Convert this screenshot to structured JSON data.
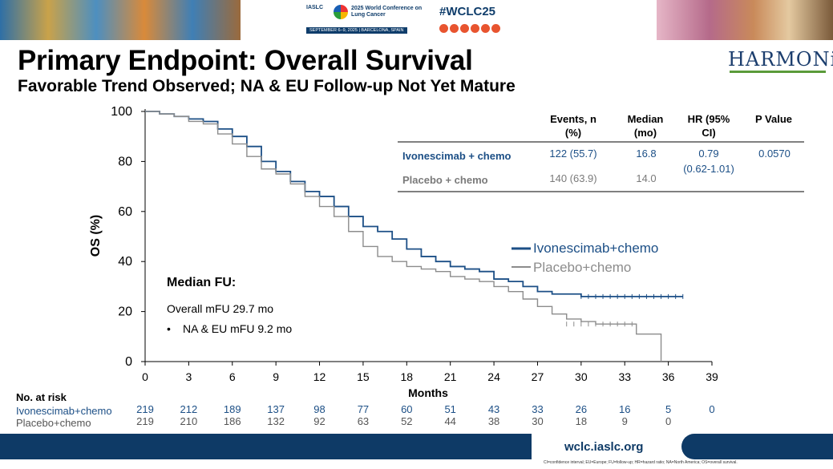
{
  "header": {
    "org": "IASLC",
    "conference": "2025 World Conference on Lung Cancer",
    "dates_location": "SEPTEMBER 6–9, 2025 | BARCELONA, SPAIN",
    "hashtag": "#WCLC25"
  },
  "title": "Primary Endpoint: Overall Survival",
  "subtitle": "Favorable Trend Observed; NA & EU Follow-up Not Yet Mature",
  "logo_text": "HARMONi",
  "colors": {
    "ivo": "#1c4f86",
    "placebo": "#8c8c8c",
    "footer": "#0e3a66"
  },
  "chart_data": {
    "type": "line",
    "title": "",
    "xlabel": "Months",
    "ylabel": "OS (%)",
    "xlim": [
      0,
      39
    ],
    "ylim": [
      0,
      100
    ],
    "xticks": [
      0,
      3,
      6,
      9,
      12,
      15,
      18,
      21,
      24,
      27,
      30,
      33,
      36,
      39
    ],
    "yticks": [
      0,
      20,
      40,
      60,
      80,
      100
    ],
    "series": [
      {
        "name": "Ivonescimab+chemo",
        "color": "#1c4f86",
        "x": [
          0,
          1,
          2,
          3,
          4,
          5,
          6,
          7,
          8,
          9,
          10,
          11,
          12,
          13,
          14,
          15,
          16,
          17,
          18,
          19,
          20,
          21,
          22,
          23,
          24,
          25,
          26,
          27,
          28,
          29,
          30,
          31,
          32,
          33,
          34,
          35,
          36,
          37
        ],
        "y": [
          100,
          99,
          98,
          97,
          96,
          93,
          90,
          86,
          80,
          76,
          72,
          68,
          66,
          62,
          58,
          54,
          52,
          49,
          45,
          42,
          40,
          38,
          37,
          36,
          33,
          32,
          30,
          28,
          27,
          27,
          26,
          26,
          26,
          26,
          26,
          26,
          26,
          26
        ]
      },
      {
        "name": "Placebo+chemo",
        "color": "#8c8c8c",
        "x": [
          0,
          1,
          2,
          3,
          4,
          5,
          6,
          7,
          8,
          9,
          10,
          11,
          12,
          13,
          14,
          15,
          16,
          17,
          18,
          19,
          20,
          21,
          22,
          23,
          24,
          25,
          26,
          27,
          28,
          29,
          30,
          31,
          32,
          33,
          33.8,
          35.5,
          35.5
        ],
        "y": [
          100,
          99,
          98,
          96,
          95,
          91,
          87,
          82,
          77,
          75,
          71,
          66,
          62,
          58,
          52,
          46,
          42,
          40,
          38,
          37,
          36,
          34,
          33,
          32,
          30,
          28,
          25,
          22,
          19,
          17,
          16,
          15,
          15,
          15,
          11,
          11,
          0
        ]
      }
    ],
    "legend_position": "center-right"
  },
  "table": {
    "headers": [
      "Events, n (%)",
      "Median (mo)",
      "HR (95% CI)",
      "P Value"
    ],
    "rows": [
      {
        "arm": "Ivonescimab + chemo",
        "events": "122 (55.7)",
        "median": "16.8",
        "hr": "0.79",
        "ci": "(0.62-1.01)",
        "p": "0.0570"
      },
      {
        "arm": "Placebo + chemo",
        "events": "140 (63.9)",
        "median": "14.0"
      }
    ]
  },
  "followup": {
    "title": "Median FU:",
    "overall": "Overall mFU 29.7 mo",
    "na_eu": "NA & EU mFU 9.2 mo"
  },
  "risk_table": {
    "label": "No. at risk",
    "arms": [
      {
        "name": "Ivonescimab+chemo",
        "counts": [
          "219",
          "212",
          "189",
          "137",
          "98",
          "77",
          "60",
          "51",
          "43",
          "33",
          "26",
          "16",
          "5",
          "0"
        ]
      },
      {
        "name": "Placebo+chemo",
        "counts": [
          "219",
          "210",
          "186",
          "132",
          "92",
          "63",
          "52",
          "44",
          "38",
          "30",
          "18",
          "9",
          "0"
        ]
      }
    ]
  },
  "footer": {
    "url": "wclc.iaslc.org",
    "footnote": "CI=confidence interval; EU=Europe; FU=follow-up; HR=hazard ratio; NA=North America; OS=overall survival."
  }
}
